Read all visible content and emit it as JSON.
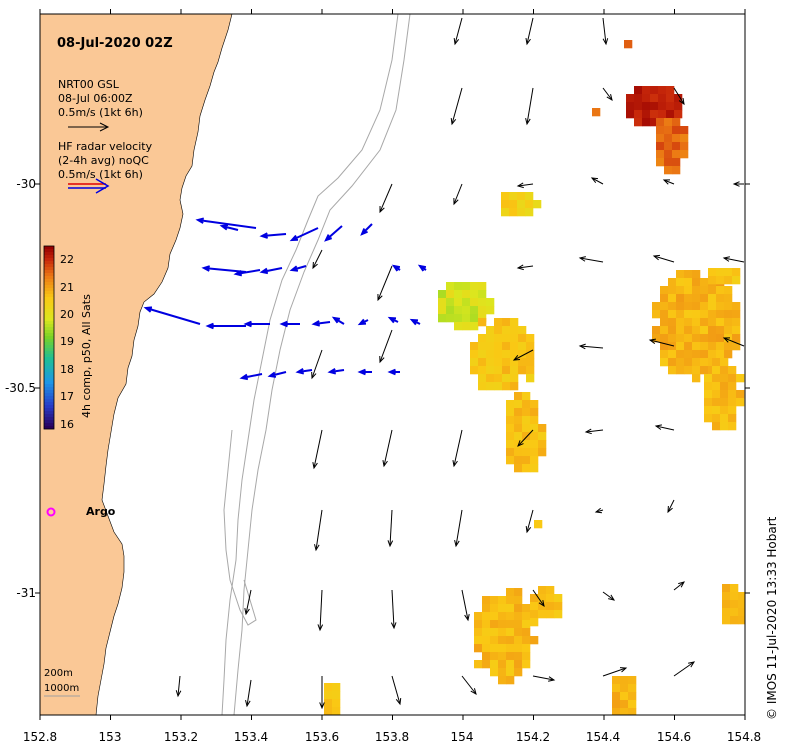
{
  "title": "08-Jul-2020 02Z",
  "legend_gsl": {
    "line1": "NRT00 GSL",
    "line2": "08-Jul 06:00Z",
    "line3": "0.5m/s (1kt 6h)"
  },
  "legend_hf": {
    "line1": "HF radar velocity",
    "line2": "(2-4h avg) noQC",
    "line3": "0.5m/s (1kt 6h)"
  },
  "colorbar": {
    "label": "4h comp, p50, All Sats",
    "ticks": [
      "22",
      "21",
      "20",
      "19",
      "18",
      "17",
      "16"
    ]
  },
  "argo_label": "Argo",
  "depth_legend": {
    "line1": "200m",
    "line2": "1000m"
  },
  "credit": "© IMOS 11-Jul-2020 13:33 Hobart",
  "axes": {
    "x_ticks": [
      "152.8",
      "153",
      "153.2",
      "153.4",
      "153.6",
      "153.8",
      "154",
      "154.2",
      "154.4",
      "154.6",
      "154.8"
    ],
    "y_ticks": [
      "-30",
      "-30.5",
      "-31"
    ]
  },
  "colors": {
    "land": "#fac896",
    "hf_arrows": "#0000e0",
    "gsl_arrows": "#000000",
    "contours": "#a0a0a0",
    "argo": "#ff00ff"
  }
}
